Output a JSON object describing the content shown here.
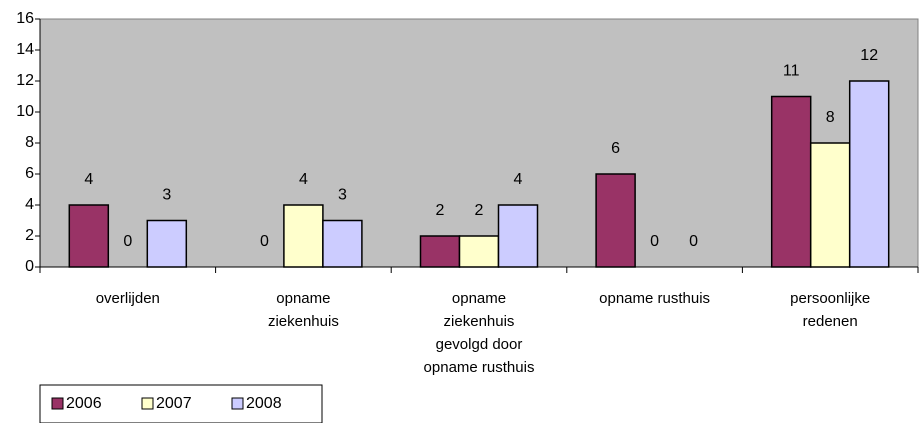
{
  "chart_data": {
    "type": "bar",
    "categories": [
      "overlijden",
      "opname ziekenhuis",
      "opname ziekenhuis gevolgd door opname rusthuis",
      "opname rusthuis",
      "persoonlijke redenen"
    ],
    "series": [
      {
        "name": "2006",
        "color": "#993366",
        "values": [
          4,
          0,
          2,
          6,
          11
        ]
      },
      {
        "name": "2007",
        "color": "#ffffcc",
        "values": [
          0,
          4,
          2,
          0,
          8
        ]
      },
      {
        "name": "2008",
        "color": "#ccccff",
        "values": [
          3,
          3,
          4,
          0,
          12
        ]
      }
    ],
    "ylim": [
      0,
      16
    ],
    "yticks": [
      0,
      2,
      4,
      6,
      8,
      10,
      12,
      14,
      16
    ],
    "grid": false,
    "plot_background": "#c0c0c0",
    "legend": "bottom-left"
  }
}
